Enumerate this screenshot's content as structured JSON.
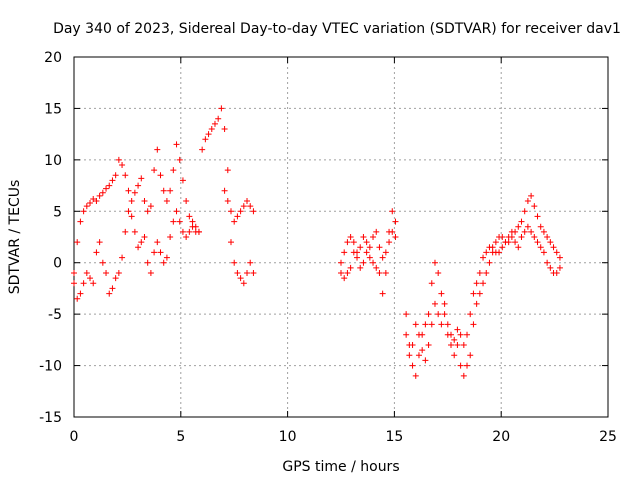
{
  "chart_data": {
    "type": "scatter",
    "title": "Day 340 of 2023, Sidereal Day-to-day VTEC variation (SDTVAR) for receiver dav1",
    "xlabel": "GPS time / hours",
    "ylabel": "SDTVAR / TECUs",
    "xlim": [
      0,
      25
    ],
    "ylim": [
      -15,
      20
    ],
    "xticks": [
      0,
      5,
      10,
      15,
      20,
      25
    ],
    "yticks": [
      -15,
      -10,
      -5,
      0,
      5,
      10,
      15,
      20
    ],
    "grid": true,
    "marker": "+",
    "color": "#ff0000",
    "series": [
      {
        "name": "dav1",
        "segments": [
          {
            "x": [
              0.0,
              0.15,
              0.3,
              0.45,
              0.6,
              0.75,
              0.9,
              1.05,
              1.2,
              1.35,
              1.5,
              1.65,
              1.8,
              1.95,
              2.1,
              2.25,
              2.4,
              2.55,
              2.7,
              2.85,
              3.0,
              3.15,
              3.3,
              3.45,
              3.6,
              3.75,
              3.9,
              4.05,
              4.2,
              4.35,
              4.5,
              4.65,
              4.8,
              4.95,
              5.1,
              5.25,
              5.4,
              5.55,
              5.7,
              5.85,
              6.0,
              6.15,
              6.3,
              6.45,
              6.6,
              6.75,
              6.9,
              7.05,
              7.2,
              7.35,
              7.5,
              7.65,
              7.8,
              7.95,
              8.1,
              8.25,
              8.4
            ],
            "y": [
              -1.0,
              2.0,
              4.0,
              5.0,
              5.5,
              5.8,
              6.2,
              6.0,
              6.5,
              6.8,
              7.2,
              7.5,
              8.0,
              8.5,
              10.0,
              9.5,
              8.5,
              7.0,
              6.0,
              6.8,
              7.5,
              8.2,
              6.0,
              5.0,
              5.5,
              9.0,
              11.0,
              8.5,
              7.0,
              6.0,
              7.0,
              9.0,
              11.5,
              10.0,
              8.0,
              6.0,
              4.5,
              3.5,
              3.0,
              3.0,
              11.0,
              12.0,
              12.5,
              13.0,
              13.5,
              14.0,
              15.0,
              13.0,
              9.0,
              5.0,
              4.0,
              4.5,
              5.0,
              5.5,
              6.0,
              5.5,
              5.0
            ]
          },
          {
            "x": [
              0.0,
              0.15,
              0.3,
              0.45,
              0.6,
              0.75,
              0.9,
              1.05,
              1.2,
              1.35,
              1.5,
              1.65,
              1.8,
              1.95,
              2.1,
              2.25,
              2.4,
              2.55,
              2.7,
              2.85,
              3.0,
              3.15,
              3.3,
              3.45,
              3.6,
              3.75,
              3.9,
              4.05,
              4.2,
              4.35,
              4.5,
              4.65,
              4.8,
              4.95,
              5.1,
              5.25,
              5.4,
              5.55,
              5.7,
              5.85,
              7.05,
              7.2,
              7.35,
              7.5,
              7.65,
              7.8,
              7.95,
              8.1,
              8.25,
              8.4
            ],
            "y": [
              -2.0,
              -3.5,
              -3.0,
              -2.0,
              -1.0,
              -1.5,
              -2.0,
              1.0,
              2.0,
              0.0,
              -1.0,
              -3.0,
              -2.5,
              -1.5,
              -1.0,
              0.5,
              3.0,
              5.0,
              4.5,
              3.0,
              1.5,
              2.0,
              2.5,
              0.0,
              -1.0,
              1.0,
              2.0,
              1.0,
              0.0,
              0.5,
              2.5,
              4.0,
              5.0,
              4.0,
              3.0,
              2.5,
              3.0,
              4.0,
              3.5,
              3.0,
              7.0,
              6.0,
              2.0,
              0.0,
              -1.0,
              -1.5,
              -2.0,
              -1.0,
              0.0,
              -1.0
            ]
          },
          {
            "x": [
              12.5,
              12.65,
              12.8,
              12.95,
              13.1,
              13.25,
              13.4,
              13.55,
              13.7,
              13.85,
              14.0,
              14.15,
              14.3,
              14.45,
              14.6,
              14.75,
              14.9,
              15.05
            ],
            "y": [
              0.0,
              1.0,
              2.0,
              2.5,
              2.0,
              1.0,
              1.5,
              2.5,
              2.0,
              1.5,
              2.5,
              3.0,
              1.5,
              0.5,
              1.0,
              3.0,
              5.0,
              4.0
            ]
          },
          {
            "x": [
              12.5,
              12.65,
              12.8,
              12.95,
              13.1,
              13.25,
              13.4,
              13.55,
              13.7,
              13.85,
              14.0,
              14.15,
              14.3,
              14.45,
              14.6,
              14.75,
              14.9,
              15.05
            ],
            "y": [
              -1.0,
              -1.5,
              -1.0,
              -0.5,
              1.0,
              0.5,
              -0.5,
              0.0,
              1.0,
              0.5,
              0.0,
              -0.5,
              -1.0,
              -3.0,
              -1.0,
              2.0,
              3.0,
              2.5
            ]
          },
          {
            "x": [
              15.55,
              15.7,
              15.85,
              16.0,
              16.15,
              16.3,
              16.45,
              16.6,
              16.75,
              16.9,
              17.05,
              17.2,
              17.35,
              17.5,
              17.65,
              17.8,
              17.95,
              18.1,
              18.25,
              18.4,
              18.55,
              18.7,
              18.85,
              19.0,
              19.15,
              19.3,
              19.45,
              19.6,
              19.75,
              19.9,
              20.05,
              20.2,
              20.35,
              20.5,
              20.65,
              20.8,
              20.95,
              21.1,
              21.25,
              21.4,
              21.55,
              21.7,
              21.85,
              22.0,
              22.15,
              22.3,
              22.45,
              22.6,
              22.75
            ],
            "y": [
              -5.0,
              -8.0,
              -10.0,
              -11.0,
              -9.0,
              -7.0,
              -6.0,
              -5.0,
              -2.0,
              0.0,
              -1.0,
              -3.0,
              -5.0,
              -7.0,
              -8.0,
              -9.0,
              -8.0,
              -10.0,
              -11.0,
              -10.0,
              -9.0,
              -6.0,
              -4.0,
              -3.0,
              -2.0,
              -1.0,
              0.0,
              1.0,
              2.0,
              2.5,
              2.5,
              2.0,
              2.0,
              2.5,
              3.0,
              3.5,
              4.0,
              5.0,
              6.0,
              6.5,
              5.5,
              4.5,
              3.5,
              3.0,
              2.5,
              2.0,
              1.5,
              1.0,
              0.5
            ]
          },
          {
            "x": [
              15.55,
              15.7,
              15.85,
              16.0,
              16.15,
              16.3,
              16.45,
              16.6,
              16.75,
              16.9,
              17.05,
              17.2,
              17.35,
              17.5,
              17.65,
              17.8,
              17.95,
              18.1,
              18.25,
              18.4,
              18.55,
              18.7,
              18.85,
              19.0,
              19.15,
              19.3,
              19.45,
              19.6,
              19.75,
              19.9,
              20.05,
              20.2,
              20.35,
              20.5,
              20.65,
              20.8,
              20.95,
              21.1,
              21.25,
              21.4,
              21.55,
              21.7,
              21.85,
              22.0,
              22.15,
              22.3,
              22.45,
              22.6,
              22.75
            ],
            "y": [
              -7.0,
              -9.0,
              -8.0,
              -6.0,
              -7.0,
              -8.5,
              -9.5,
              -8.0,
              -6.0,
              -4.0,
              -5.0,
              -6.0,
              -4.0,
              -6.0,
              -7.0,
              -7.5,
              -6.5,
              -7.0,
              -8.0,
              -7.0,
              -5.0,
              -3.0,
              -2.0,
              -1.0,
              0.5,
              1.0,
              1.5,
              1.5,
              1.0,
              1.0,
              1.5,
              2.0,
              2.5,
              3.0,
              2.0,
              1.5,
              2.5,
              3.0,
              3.5,
              3.0,
              2.5,
              2.0,
              1.5,
              1.0,
              0.0,
              -0.5,
              -1.0,
              -1.0,
              -0.5
            ]
          }
        ]
      }
    ]
  }
}
